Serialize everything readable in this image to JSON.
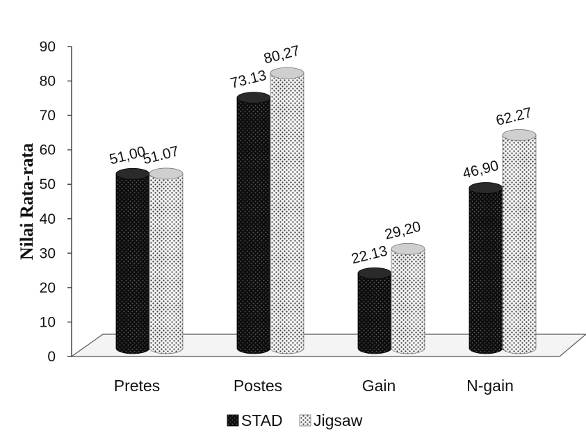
{
  "chart_data": {
    "type": "bar",
    "categories": [
      "Pretes",
      "Postes",
      "Gain",
      "N-gain"
    ],
    "series": [
      {
        "name": "STAD",
        "values": [
          51.0,
          73.13,
          22.13,
          46.9
        ],
        "labels": [
          "51,00",
          "73.13",
          "22.13",
          "46,90"
        ],
        "color": "#1a1a1a"
      },
      {
        "name": "Jigsaw",
        "values": [
          51.07,
          80.27,
          29.2,
          62.27
        ],
        "labels": [
          "51.07",
          "80,27",
          "29,20",
          "62.27"
        ],
        "color": "#d9d9d9"
      }
    ],
    "ylabel": "Nilai Rata-rata",
    "xlabel": "",
    "ylim": [
      0,
      90
    ],
    "yticks": [
      0,
      10,
      20,
      30,
      40,
      50,
      60,
      70,
      80,
      90
    ],
    "legend_position": "bottom",
    "style": "3d-cylinder"
  }
}
